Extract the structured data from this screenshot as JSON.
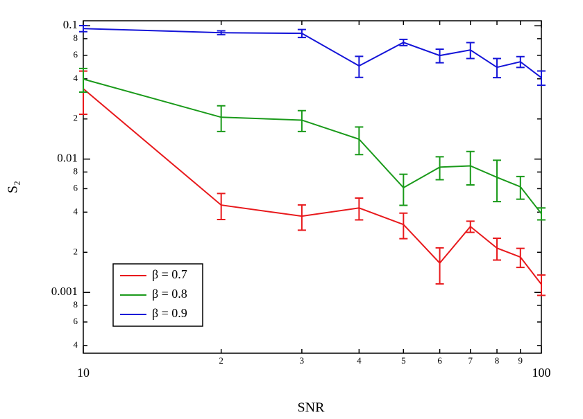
{
  "chart_data": {
    "type": "line",
    "xlabel": "SNR",
    "ylabel": "S₂",
    "xscale": "log",
    "yscale": "log",
    "xlim": [
      10,
      100
    ],
    "ylim": [
      0.00035,
      0.109
    ],
    "xticks": [
      10,
      {
        "value": 20,
        "label": "2"
      },
      {
        "value": 30,
        "label": "3"
      },
      {
        "value": 40,
        "label": "4"
      },
      {
        "value": 50,
        "label": "5"
      },
      {
        "value": 60,
        "label": "6"
      },
      {
        "value": 70,
        "label": "7"
      },
      {
        "value": 80,
        "label": "8"
      },
      {
        "value": 90,
        "label": "9"
      },
      100
    ],
    "yticks": [
      0.1,
      {
        "value": 0.08,
        "label": "8"
      },
      {
        "value": 0.06,
        "label": "6"
      },
      {
        "value": 0.04,
        "label": "4"
      },
      {
        "value": 0.02,
        "label": "2"
      },
      0.01,
      {
        "value": 0.008,
        "label": "8"
      },
      {
        "value": 0.006,
        "label": "6"
      },
      {
        "value": 0.004,
        "label": "4"
      },
      {
        "value": 0.002,
        "label": "2"
      },
      0.001,
      {
        "value": 0.0008,
        "label": "8"
      },
      {
        "value": 0.0006,
        "label": "6"
      },
      {
        "value": 0.0004,
        "label": "4"
      }
    ],
    "legend": "lower left",
    "x": [
      10,
      20,
      30,
      40,
      50,
      60,
      70,
      80,
      90,
      100
    ],
    "series": [
      {
        "name": "β = 0.7",
        "color": "#e8191c",
        "values": [
          0.0337,
          0.00452,
          0.00373,
          0.0043,
          0.00323,
          0.00166,
          0.00312,
          0.00215,
          0.00184,
          0.00115
        ],
        "errors": [
          0.012,
          0.001,
          0.0008,
          0.0008,
          0.0007,
          0.0005,
          0.0003,
          0.0004,
          0.0003,
          0.0002
        ]
      },
      {
        "name": "β = 0.8",
        "color": "#1a9a1a",
        "values": [
          0.0398,
          0.0206,
          0.0196,
          0.0141,
          0.0061,
          0.0087,
          0.0089,
          0.0073,
          0.0062,
          0.0039
        ],
        "errors": [
          0.008,
          0.0045,
          0.0035,
          0.0033,
          0.0016,
          0.0017,
          0.0025,
          0.0025,
          0.0012,
          0.0004
        ]
      },
      {
        "name": "β = 0.9",
        "color": "#1414d8",
        "values": [
          0.0953,
          0.0887,
          0.0877,
          0.05,
          0.075,
          0.0598,
          0.0658,
          0.0488,
          0.0537,
          0.0408
        ],
        "errors": [
          0.005,
          0.003,
          0.006,
          0.009,
          0.004,
          0.007,
          0.009,
          0.008,
          0.005,
          0.005
        ]
      }
    ]
  }
}
